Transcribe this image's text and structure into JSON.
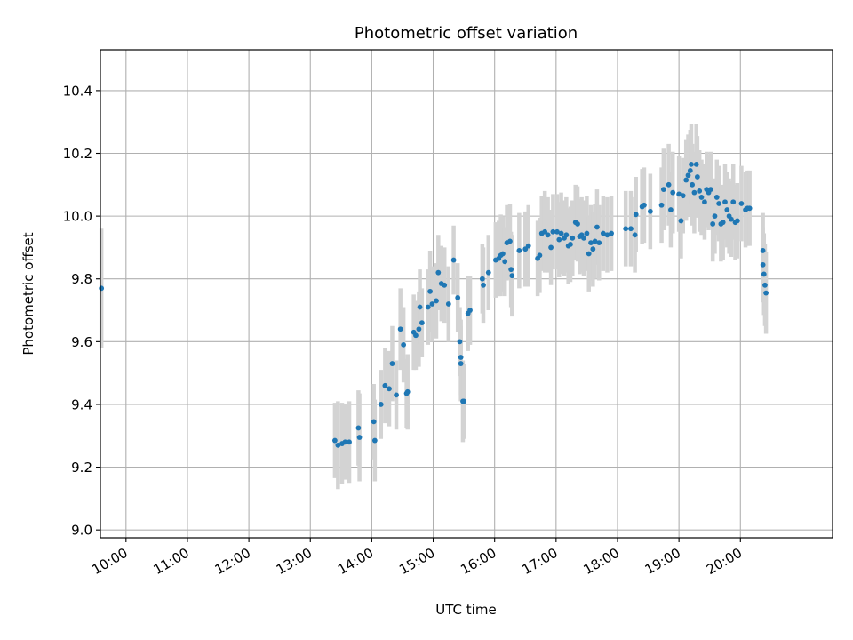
{
  "chart_data": {
    "type": "scatter",
    "title": "Photometric offset variation",
    "xlabel": "UTC time",
    "ylabel": "Photometric offset",
    "x_unit": "UTC time (hours)",
    "xlim": [
      "09:35",
      "21:30"
    ],
    "ylim": [
      8.975,
      10.53
    ],
    "x_ticks": [
      "10:00",
      "11:00",
      "12:00",
      "13:00",
      "14:00",
      "15:00",
      "16:00",
      "17:00",
      "18:00",
      "19:00",
      "20:00"
    ],
    "y_ticks": [
      "9.0",
      "9.2",
      "9.4",
      "9.6",
      "9.8",
      "10.0",
      "10.2",
      "10.4"
    ],
    "grid": true,
    "marker_color": "#1f77b4",
    "errorbar_color": "#d3d3d3",
    "series": [
      {
        "points": [
          {
            "x": "09:36",
            "y": 9.77,
            "err": 0.19
          },
          {
            "x": "13:24",
            "y": 9.285,
            "err": 0.12
          },
          {
            "x": "13:27",
            "y": 9.27,
            "err": 0.14
          },
          {
            "x": "13:31",
            "y": 9.275,
            "err": 0.13
          },
          {
            "x": "13:34",
            "y": 9.28,
            "err": 0.12
          },
          {
            "x": "13:38",
            "y": 9.28,
            "err": 0.13
          },
          {
            "x": "13:47",
            "y": 9.325,
            "err": 0.12
          },
          {
            "x": "13:48",
            "y": 9.295,
            "err": 0.14
          },
          {
            "x": "14:02",
            "y": 9.345,
            "err": 0.12
          },
          {
            "x": "14:03",
            "y": 9.285,
            "err": 0.13
          },
          {
            "x": "14:09",
            "y": 9.4,
            "err": 0.11
          },
          {
            "x": "14:13",
            "y": 9.46,
            "err": 0.12
          },
          {
            "x": "14:17",
            "y": 9.45,
            "err": 0.12
          },
          {
            "x": "14:20",
            "y": 9.53,
            "err": 0.12
          },
          {
            "x": "14:24",
            "y": 9.43,
            "err": 0.11
          },
          {
            "x": "14:28",
            "y": 9.64,
            "err": 0.13
          },
          {
            "x": "14:31",
            "y": 9.59,
            "err": 0.12
          },
          {
            "x": "14:34",
            "y": 9.435,
            "err": 0.11
          },
          {
            "x": "14:35",
            "y": 9.44,
            "err": 0.12
          },
          {
            "x": "14:41",
            "y": 9.63,
            "err": 0.12
          },
          {
            "x": "14:43",
            "y": 9.62,
            "err": 0.11
          },
          {
            "x": "14:46",
            "y": 9.64,
            "err": 0.12
          },
          {
            "x": "14:47",
            "y": 9.71,
            "err": 0.12
          },
          {
            "x": "14:49",
            "y": 9.66,
            "err": 0.11
          },
          {
            "x": "14:55",
            "y": 9.71,
            "err": 0.12
          },
          {
            "x": "14:57",
            "y": 9.76,
            "err": 0.13
          },
          {
            "x": "14:59",
            "y": 9.72,
            "err": 0.12
          },
          {
            "x": "15:03",
            "y": 9.73,
            "err": 0.12
          },
          {
            "x": "15:05",
            "y": 9.82,
            "err": 0.12
          },
          {
            "x": "15:08",
            "y": 9.785,
            "err": 0.12
          },
          {
            "x": "15:11",
            "y": 9.78,
            "err": 0.12
          },
          {
            "x": "15:15",
            "y": 9.72,
            "err": 0.12
          },
          {
            "x": "15:20",
            "y": 9.86,
            "err": 0.11
          },
          {
            "x": "15:24",
            "y": 9.74,
            "err": 0.11
          },
          {
            "x": "15:26",
            "y": 9.6,
            "err": 0.11
          },
          {
            "x": "15:27",
            "y": 9.55,
            "err": 0.12
          },
          {
            "x": "15:27",
            "y": 9.53,
            "err": 0.12
          },
          {
            "x": "15:29",
            "y": 9.41,
            "err": 0.13
          },
          {
            "x": "15:30",
            "y": 9.41,
            "err": 0.12
          },
          {
            "x": "15:34",
            "y": 9.69,
            "err": 0.12
          },
          {
            "x": "15:36",
            "y": 9.7,
            "err": 0.11
          },
          {
            "x": "15:48",
            "y": 9.8,
            "err": 0.11
          },
          {
            "x": "15:49",
            "y": 9.78,
            "err": 0.12
          },
          {
            "x": "15:54",
            "y": 9.82,
            "err": 0.12
          },
          {
            "x": "16:01",
            "y": 9.86,
            "err": 0.12
          },
          {
            "x": "16:04",
            "y": 9.865,
            "err": 0.12
          },
          {
            "x": "16:06",
            "y": 9.875,
            "err": 0.13
          },
          {
            "x": "16:08",
            "y": 9.88,
            "err": 0.12
          },
          {
            "x": "16:10",
            "y": 9.855,
            "err": 0.11
          },
          {
            "x": "16:12",
            "y": 9.915,
            "err": 0.12
          },
          {
            "x": "16:15",
            "y": 9.92,
            "err": 0.12
          },
          {
            "x": "16:16",
            "y": 9.83,
            "err": 0.12
          },
          {
            "x": "16:17",
            "y": 9.81,
            "err": 0.13
          },
          {
            "x": "16:24",
            "y": 9.89,
            "err": 0.12
          },
          {
            "x": "16:30",
            "y": 9.895,
            "err": 0.12
          },
          {
            "x": "16:33",
            "y": 9.905,
            "err": 0.13
          },
          {
            "x": "16:42",
            "y": 9.865,
            "err": 0.12
          },
          {
            "x": "16:44",
            "y": 9.875,
            "err": 0.12
          },
          {
            "x": "16:46",
            "y": 9.945,
            "err": 0.12
          },
          {
            "x": "16:49",
            "y": 9.95,
            "err": 0.13
          },
          {
            "x": "16:52",
            "y": 9.94,
            "err": 0.12
          },
          {
            "x": "16:55",
            "y": 9.9,
            "err": 0.12
          },
          {
            "x": "16:57",
            "y": 9.95,
            "err": 0.12
          },
          {
            "x": "17:01",
            "y": 9.95,
            "err": 0.12
          },
          {
            "x": "17:03",
            "y": 9.925,
            "err": 0.12
          },
          {
            "x": "17:05",
            "y": 9.945,
            "err": 0.13
          },
          {
            "x": "17:08",
            "y": 9.93,
            "err": 0.12
          },
          {
            "x": "17:10",
            "y": 9.94,
            "err": 0.12
          },
          {
            "x": "17:12",
            "y": 9.905,
            "err": 0.12
          },
          {
            "x": "17:14",
            "y": 9.91,
            "err": 0.12
          },
          {
            "x": "17:16",
            "y": 9.93,
            "err": 0.12
          },
          {
            "x": "17:19",
            "y": 9.98,
            "err": 0.12
          },
          {
            "x": "17:21",
            "y": 9.975,
            "err": 0.12
          },
          {
            "x": "17:23",
            "y": 9.935,
            "err": 0.12
          },
          {
            "x": "17:25",
            "y": 9.94,
            "err": 0.12
          },
          {
            "x": "17:27",
            "y": 9.93,
            "err": 0.12
          },
          {
            "x": "17:30",
            "y": 9.945,
            "err": 0.12
          },
          {
            "x": "17:32",
            "y": 9.88,
            "err": 0.12
          },
          {
            "x": "17:34",
            "y": 9.915,
            "err": 0.12
          },
          {
            "x": "17:36",
            "y": 9.895,
            "err": 0.12
          },
          {
            "x": "17:38",
            "y": 9.92,
            "err": 0.12
          },
          {
            "x": "17:40",
            "y": 9.965,
            "err": 0.12
          },
          {
            "x": "17:42",
            "y": 9.915,
            "err": 0.12
          },
          {
            "x": "17:46",
            "y": 9.945,
            "err": 0.12
          },
          {
            "x": "17:50",
            "y": 9.94,
            "err": 0.12
          },
          {
            "x": "17:54",
            "y": 9.945,
            "err": 0.12
          },
          {
            "x": "18:08",
            "y": 9.96,
            "err": 0.12
          },
          {
            "x": "18:13",
            "y": 9.96,
            "err": 0.12
          },
          {
            "x": "18:17",
            "y": 9.94,
            "err": 0.12
          },
          {
            "x": "18:18",
            "y": 10.005,
            "err": 0.12
          },
          {
            "x": "18:24",
            "y": 10.03,
            "err": 0.12
          },
          {
            "x": "18:26",
            "y": 10.035,
            "err": 0.12
          },
          {
            "x": "18:32",
            "y": 10.015,
            "err": 0.12
          },
          {
            "x": "18:43",
            "y": 10.035,
            "err": 0.12
          },
          {
            "x": "18:45",
            "y": 10.085,
            "err": 0.13
          },
          {
            "x": "18:50",
            "y": 10.1,
            "err": 0.13
          },
          {
            "x": "18:52",
            "y": 10.02,
            "err": 0.12
          },
          {
            "x": "18:54",
            "y": 10.075,
            "err": 0.13
          },
          {
            "x": "19:00",
            "y": 10.07,
            "err": 0.12
          },
          {
            "x": "19:02",
            "y": 9.985,
            "err": 0.12
          },
          {
            "x": "19:04",
            "y": 10.065,
            "err": 0.12
          },
          {
            "x": "19:07",
            "y": 10.115,
            "err": 0.13
          },
          {
            "x": "19:09",
            "y": 10.13,
            "err": 0.13
          },
          {
            "x": "19:11",
            "y": 10.145,
            "err": 0.13
          },
          {
            "x": "19:12",
            "y": 10.165,
            "err": 0.13
          },
          {
            "x": "19:13",
            "y": 10.1,
            "err": 0.13
          },
          {
            "x": "19:15",
            "y": 10.075,
            "err": 0.13
          },
          {
            "x": "19:17",
            "y": 10.165,
            "err": 0.13
          },
          {
            "x": "19:18",
            "y": 10.125,
            "err": 0.13
          },
          {
            "x": "19:20",
            "y": 10.08,
            "err": 0.13
          },
          {
            "x": "19:22",
            "y": 10.06,
            "err": 0.12
          },
          {
            "x": "19:25",
            "y": 10.045,
            "err": 0.12
          },
          {
            "x": "19:27",
            "y": 10.085,
            "err": 0.12
          },
          {
            "x": "19:29",
            "y": 10.075,
            "err": 0.12
          },
          {
            "x": "19:31",
            "y": 10.085,
            "err": 0.12
          },
          {
            "x": "19:33",
            "y": 9.975,
            "err": 0.12
          },
          {
            "x": "19:35",
            "y": 10.0,
            "err": 0.12
          },
          {
            "x": "19:37",
            "y": 10.06,
            "err": 0.12
          },
          {
            "x": "19:39",
            "y": 10.04,
            "err": 0.12
          },
          {
            "x": "19:41",
            "y": 9.975,
            "err": 0.12
          },
          {
            "x": "19:43",
            "y": 9.98,
            "err": 0.12
          },
          {
            "x": "19:45",
            "y": 10.045,
            "err": 0.12
          },
          {
            "x": "19:47",
            "y": 10.02,
            "err": 0.12
          },
          {
            "x": "19:49",
            "y": 10.0,
            "err": 0.12
          },
          {
            "x": "19:51",
            "y": 9.99,
            "err": 0.12
          },
          {
            "x": "19:53",
            "y": 10.045,
            "err": 0.12
          },
          {
            "x": "19:55",
            "y": 9.98,
            "err": 0.12
          },
          {
            "x": "19:57",
            "y": 9.985,
            "err": 0.12
          },
          {
            "x": "20:01",
            "y": 10.04,
            "err": 0.12
          },
          {
            "x": "20:05",
            "y": 10.02,
            "err": 0.12
          },
          {
            "x": "20:07",
            "y": 10.025,
            "err": 0.12
          },
          {
            "x": "20:09",
            "y": 10.025,
            "err": 0.12
          },
          {
            "x": "20:22",
            "y": 9.89,
            "err": 0.12
          },
          {
            "x": "20:22",
            "y": 9.845,
            "err": 0.12
          },
          {
            "x": "20:23",
            "y": 9.815,
            "err": 0.13
          },
          {
            "x": "20:24",
            "y": 9.78,
            "err": 0.13
          },
          {
            "x": "20:25",
            "y": 9.755,
            "err": 0.13
          }
        ]
      }
    ]
  }
}
